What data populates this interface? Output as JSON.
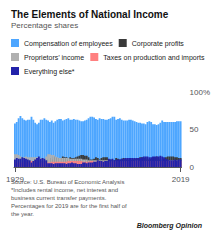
{
  "chart_data": {
    "type": "bar",
    "stacked": true,
    "title": "The Elements of National Income",
    "subtitle": "Percentage shares",
    "x": [
      1929,
      1930,
      1931,
      1932,
      1933,
      1934,
      1935,
      1936,
      1937,
      1938,
      1939,
      1940,
      1941,
      1942,
      1943,
      1944,
      1945,
      1946,
      1947,
      1948,
      1949,
      1950,
      1951,
      1952,
      1953,
      1954,
      1955,
      1956,
      1957,
      1958,
      1959,
      1960,
      1961,
      1962,
      1963,
      1964,
      1965,
      1966,
      1967,
      1968,
      1969,
      1970,
      1971,
      1972,
      1973,
      1974,
      1975,
      1976,
      1977,
      1978,
      1979,
      1980,
      1981,
      1982,
      1983,
      1984,
      1985,
      1986,
      1987,
      1988,
      1989,
      1990,
      1991,
      1992,
      1993,
      1994,
      1995,
      1996,
      1997,
      1998,
      1999,
      2000,
      2001,
      2002,
      2003,
      2004,
      2005,
      2006,
      2007,
      2008,
      2009,
      2010,
      2011,
      2012,
      2013,
      2014,
      2015,
      2016,
      2017,
      2018,
      2019
    ],
    "xlim": [
      1928.5,
      2019.5
    ],
    "xticks": [
      1929,
      2019
    ],
    "ylim": [
      0,
      100
    ],
    "yticks": [
      0,
      50,
      {
        "value": 100,
        "label": "100%"
      }
    ],
    "grid": false,
    "legend": "top",
    "series": [
      {
        "name": "Compensation of employees",
        "color": "#4da6ff",
        "values": [
          58,
          60,
          65,
          68,
          65,
          63,
          62,
          63,
          63,
          67,
          63,
          59,
          57,
          59,
          63,
          63,
          65,
          63,
          62,
          60,
          62,
          59,
          61,
          63,
          64,
          64,
          62,
          63,
          64,
          65,
          63,
          63,
          64,
          63,
          63,
          62,
          61,
          61,
          62,
          63,
          65,
          67,
          67,
          66,
          64,
          63,
          65,
          64,
          64,
          63,
          63,
          64,
          65,
          67,
          67,
          63,
          64,
          65,
          63,
          62,
          62,
          62,
          63,
          63,
          62,
          61,
          60,
          59,
          59,
          58,
          58,
          57,
          60,
          61,
          60,
          57,
          57,
          56,
          57,
          59,
          62,
          60,
          60,
          60,
          60,
          60,
          60,
          60,
          61,
          61,
          61
        ]
      },
      {
        "name": "Corporate profits",
        "color": "#3a3a3a",
        "values": [
          9,
          5,
          2,
          1,
          3,
          5,
          6,
          7,
          8,
          6,
          8,
          10,
          11,
          9,
          8,
          8,
          7,
          8,
          10,
          12,
          10,
          14,
          13,
          12,
          12,
          12,
          14,
          13,
          13,
          10,
          13,
          12,
          12,
          13,
          14,
          15,
          16,
          16,
          15,
          15,
          13,
          10,
          10,
          11,
          13,
          12,
          10,
          12,
          13,
          13,
          13,
          10,
          10,
          7,
          9,
          12,
          11,
          10,
          11,
          12,
          11,
          10,
          9,
          9,
          10,
          11,
          11,
          12,
          13,
          13,
          12,
          13,
          10,
          10,
          11,
          13,
          13,
          14,
          13,
          10,
          8,
          11,
          13,
          14,
          14,
          14,
          14,
          13,
          13,
          12,
          12
        ]
      },
      {
        "name": "Proprietors’ income",
        "color": "#b0b0b0",
        "values": [
          17,
          17,
          16,
          14,
          13,
          13,
          14,
          13,
          13,
          13,
          13,
          13,
          13,
          12,
          12,
          11,
          11,
          14,
          17,
          17,
          16,
          16,
          14,
          13,
          12,
          12,
          12,
          12,
          12,
          12,
          11,
          11,
          11,
          11,
          11,
          11,
          11,
          10,
          10,
          10,
          9,
          9,
          9,
          9,
          9,
          9,
          9,
          9,
          9,
          9,
          9,
          8,
          8,
          8,
          8,
          8,
          8,
          8,
          8,
          8,
          8,
          8,
          8,
          8,
          8,
          8,
          9,
          9,
          8,
          8,
          8,
          8,
          8,
          8,
          8,
          8,
          8,
          8,
          8,
          8,
          8,
          8,
          8,
          8,
          9,
          9,
          9,
          9,
          9,
          9,
          9
        ]
      },
      {
        "name": "Taxes on production and imports",
        "color": "#ff8080",
        "values": [
          6,
          6,
          6,
          6,
          6,
          7,
          7,
          7,
          7,
          8,
          8,
          8,
          7,
          6,
          6,
          6,
          6,
          6,
          6,
          6,
          7,
          7,
          7,
          7,
          7,
          7,
          7,
          7,
          7,
          8,
          8,
          8,
          8,
          8,
          8,
          8,
          8,
          7,
          7,
          7,
          7,
          8,
          8,
          7,
          7,
          7,
          8,
          7,
          7,
          7,
          7,
          7,
          7,
          7,
          7,
          7,
          7,
          7,
          7,
          7,
          7,
          8,
          8,
          8,
          8,
          8,
          8,
          8,
          8,
          8,
          8,
          8,
          8,
          8,
          8,
          8,
          8,
          8,
          8,
          8,
          8,
          8,
          8,
          8,
          8,
          8,
          8,
          8,
          8,
          8,
          8
        ]
      },
      {
        "name": "Everything else*",
        "color": "#2222aa",
        "values": [
          10,
          12,
          11,
          11,
          13,
          12,
          11,
          10,
          9,
          6,
          8,
          10,
          12,
          14,
          11,
          12,
          11,
          9,
          5,
          5,
          5,
          4,
          5,
          5,
          5,
          5,
          5,
          5,
          4,
          5,
          5,
          6,
          5,
          5,
          4,
          4,
          4,
          6,
          6,
          5,
          6,
          6,
          6,
          7,
          7,
          9,
          8,
          8,
          7,
          8,
          8,
          11,
          10,
          11,
          9,
          10,
          10,
          10,
          11,
          11,
          12,
          12,
          12,
          12,
          12,
          12,
          12,
          12,
          12,
          13,
          14,
          14,
          14,
          13,
          13,
          14,
          14,
          14,
          14,
          15,
          14,
          13,
          11,
          10,
          9,
          9,
          9,
          10,
          9,
          10,
          10
        ]
      }
    ],
    "annotations": [
      "Source: U.S. Bureau of Economic Analysis\n*Includes rental income, net interest and\nbusiness current transfer payments.\nPercentages for 2019 are for the first half of\nthe year.",
      "Bloomberg Opinion"
    ]
  }
}
